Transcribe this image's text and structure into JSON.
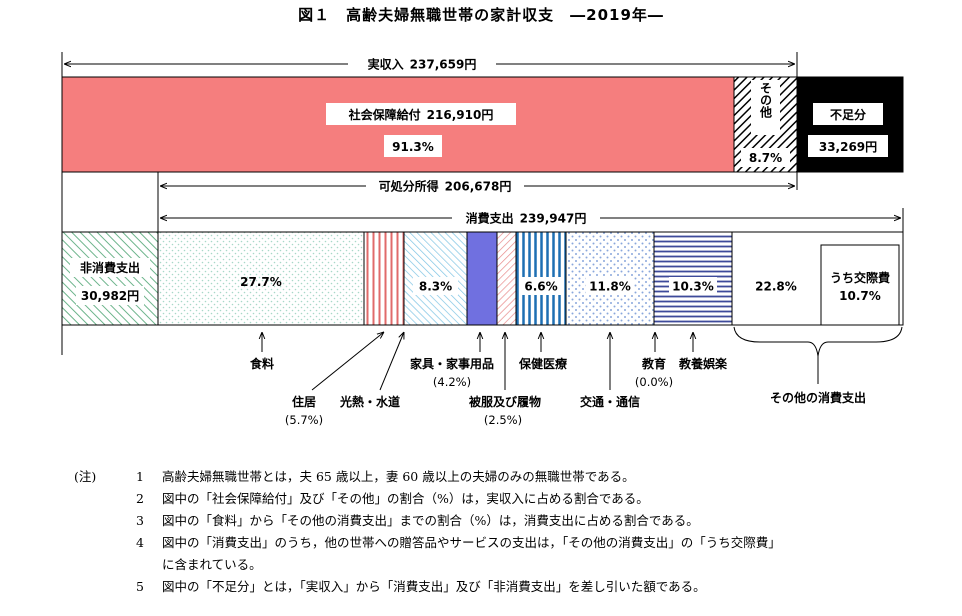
{
  "title": "図１　高齢夫婦無職世帯の家計収支　―2019年―",
  "chart_data": {
    "type": "bar",
    "income": {
      "total_label": "実収入",
      "total_value": "237,659円",
      "segments": [
        {
          "name": "社会保障給付",
          "amount": "216,910円",
          "percent": "91.3%"
        },
        {
          "name": "その他",
          "percent": "8.7%"
        }
      ],
      "shortfall": {
        "name": "不足分",
        "amount": "33,269円"
      }
    },
    "disposable": {
      "label": "可処分所得",
      "value": "206,678円"
    },
    "consumption": {
      "label": "消費支出",
      "value": "239,947円"
    },
    "non_consumption": {
      "label": "非消費支出",
      "value": "30,982円"
    },
    "expenditure_segments": [
      {
        "name": "食料",
        "percent": "27.7%"
      },
      {
        "name": "住居",
        "percent": "(5.7%)"
      },
      {
        "name": "光熱・水道",
        "percent": ""
      },
      {
        "name": "家具・家事用品",
        "percent": "(4.2%)"
      },
      {
        "name": "被服及び履物",
        "percent": "(2.5%)"
      },
      {
        "name": "保健医療",
        "percent": "6.6%"
      },
      {
        "name": "交通・通信",
        "percent": "11.8%"
      },
      {
        "name": "教育",
        "percent": "(0.0%)"
      },
      {
        "name": "教養娯楽",
        "percent": "10.3%"
      },
      {
        "name": "その他の消費支出",
        "percent": "22.8%"
      }
    ],
    "utility_percent": "8.3%",
    "social_expense": {
      "name": "うち交際費",
      "percent": "10.7%"
    }
  },
  "notes": {
    "prefix": "(注)",
    "items": [
      {
        "num": "1",
        "text": "高齢夫婦無職世帯とは，夫 65 歳以上，妻 60 歳以上の夫婦のみの無職世帯である。"
      },
      {
        "num": "2",
        "text": "図中の「社会保障給付」及び「その他」の割合（%）は，実収入に占める割合である。"
      },
      {
        "num": "3",
        "text": "図中の「食料」から「その他の消費支出」までの割合（%）は，消費支出に占める割合である。"
      },
      {
        "num": "4",
        "text": "図中の「消費支出」のうち，他の世帯への贈答品やサービスの支出は，「その他の消費支出」の「うち交際費」"
      },
      {
        "num": "",
        "text": "に含まれている。"
      },
      {
        "num": "5",
        "text": "図中の「不足分」とは，「実収入」から「消費支出」及び「非消費支出」を差し引いた額である。"
      }
    ]
  }
}
